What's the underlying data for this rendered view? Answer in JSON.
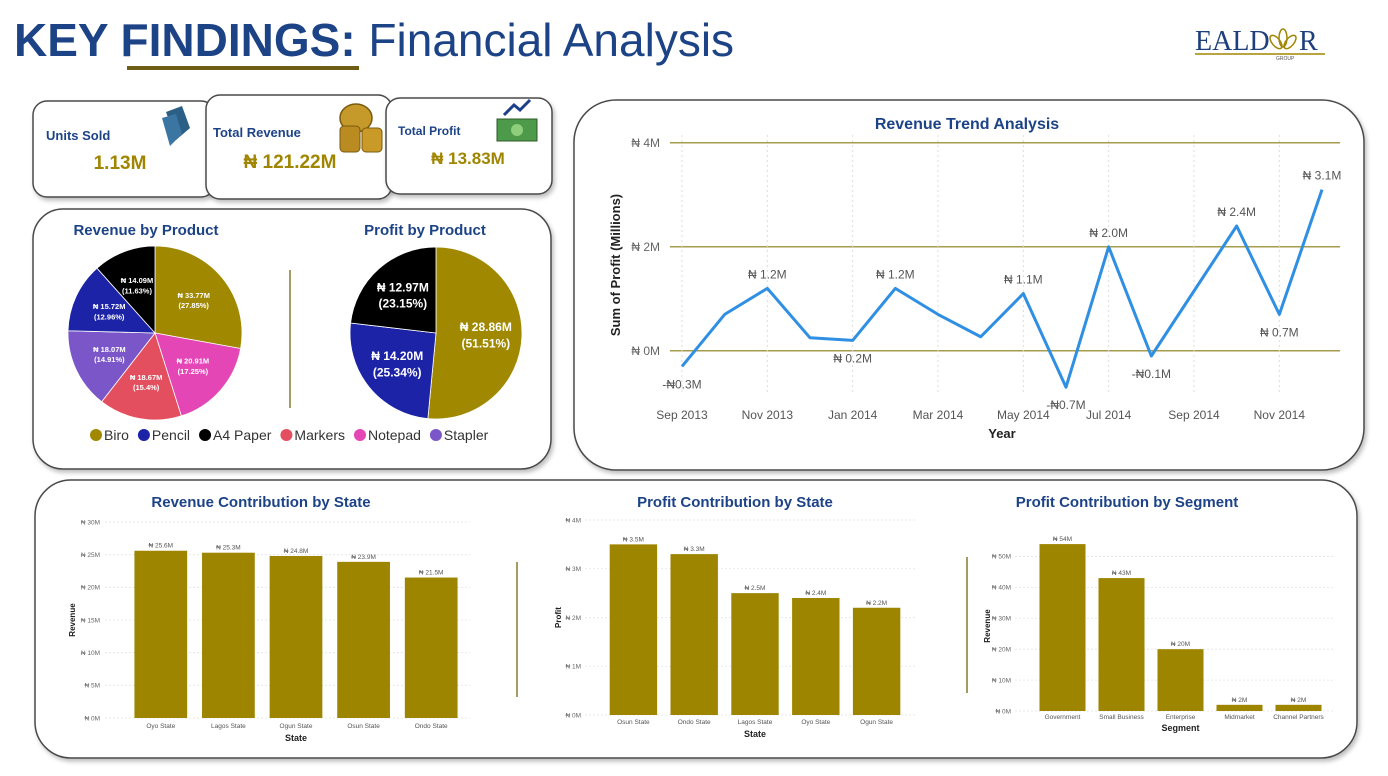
{
  "header": {
    "title_bold": "KEY FINDINGS:",
    "title_light": "Financial Analysis",
    "logo_left": "EALD",
    "logo_right": "R",
    "logo_sub": "GROUP"
  },
  "kpis": [
    {
      "label": "Units Sold",
      "value": "1.13M"
    },
    {
      "label": "Total Revenue",
      "value": "₦ 121.22M"
    },
    {
      "label": "Total Profit",
      "value": "₦ 13.83M"
    }
  ],
  "product_legend": [
    {
      "name": "Biro",
      "color": "#a08800"
    },
    {
      "name": "Pencil",
      "color": "#1c23a6"
    },
    {
      "name": "A4 Paper",
      "color": "#000000"
    },
    {
      "name": "Markers",
      "color": "#e34f5f"
    },
    {
      "name": "Notepad",
      "color": "#e446b6"
    },
    {
      "name": "Stapler",
      "color": "#7a56c9"
    }
  ],
  "chart_data": [
    {
      "type": "pie",
      "title": "Revenue by Product",
      "categories": [
        "Biro",
        "Notepad",
        "Markers",
        "Stapler",
        "Pencil",
        "A4 Paper"
      ],
      "values": [
        33.77,
        20.91,
        18.67,
        18.07,
        15.72,
        14.09
      ],
      "value_labels": [
        "₦ 33.77M",
        "₦ 20.91M",
        "₦ 18.67M",
        "₦ 18.07M",
        "₦ 15.72M",
        "₦ 14.09M"
      ],
      "percent_labels": [
        "(27.85%)",
        "(17.25%)",
        "(15.4%)",
        "(14.91%)",
        "(12.96%)",
        "(11.63%)"
      ]
    },
    {
      "type": "pie",
      "title": "Profit by Product",
      "categories": [
        "Biro",
        "Pencil",
        "A4 Paper"
      ],
      "values": [
        28.86,
        14.2,
        12.97
      ],
      "value_labels": [
        "₦ 28.86M",
        "₦ 14.20M",
        "₦ 12.97M"
      ],
      "percent_labels": [
        "(51.51%)",
        "(25.34%)",
        "(23.15%)"
      ]
    },
    {
      "type": "line",
      "title": "Revenue Trend Analysis",
      "y_label": "Sum of Profit (Millions)",
      "x_label": "Year",
      "categories": [
        "Sep 2013",
        null,
        "Nov 2013",
        null,
        "Jan 2014",
        null,
        "Mar 2014",
        null,
        "May 2014",
        null,
        "Jul 2014",
        null,
        "Sep 2014",
        null,
        "Nov 2014",
        null
      ],
      "values": [
        -0.3,
        0.7,
        1.2,
        0.25,
        0.2,
        1.2,
        0.7,
        0.27,
        1.1,
        -0.7,
        2.0,
        -0.1,
        1.15,
        2.4,
        0.7,
        3.1
      ],
      "value_labels": [
        "-₦0.3M",
        null,
        "₦ 1.2M",
        null,
        "₦ 0.2M",
        "₦ 1.2M",
        null,
        null,
        "₦ 1.1M",
        "-₦0.7M",
        "₦ 2.0M",
        "-₦0.1M",
        null,
        "₦ 2.4M",
        "₦ 0.7M",
        "₦ 3.1M"
      ],
      "color": "#2f8fe3",
      "ylim": [
        -0.85,
        4.15
      ],
      "yticks": [
        {
          "value": 0,
          "label": "₦ 0M"
        },
        {
          "value": 2,
          "label": "₦ 2M"
        },
        {
          "value": 4,
          "label": "₦ 4M"
        }
      ],
      "grid": true,
      "grid_color": "#8a7a10"
    },
    {
      "type": "bar",
      "title": "Revenue Contribution by State",
      "y_label": "Revenue",
      "x_label": "State",
      "categories": [
        "Oyo State",
        "Lagos State",
        "Ogun State",
        "Osun State",
        "Ondo State"
      ],
      "values": [
        25.6,
        25.3,
        24.8,
        23.9,
        21.5
      ],
      "value_labels": [
        "₦ 25.6M",
        "₦ 25.3M",
        "₦ 24.8M",
        "₦ 23.9M",
        "₦ 21.5M"
      ],
      "color": "#9e8500",
      "ylim": [
        0,
        30
      ],
      "yticks": [
        {
          "value": 0,
          "label": "₦ 0M"
        },
        {
          "value": 5,
          "label": "₦ 5M"
        },
        {
          "value": 10,
          "label": "₦ 10M"
        },
        {
          "value": 15,
          "label": "₦ 15M"
        },
        {
          "value": 20,
          "label": "₦ 20M"
        },
        {
          "value": 25,
          "label": "₦ 25M"
        },
        {
          "value": 30,
          "label": "₦ 30M"
        }
      ],
      "grid": true,
      "grid_color": "#e3e3e3"
    },
    {
      "type": "bar",
      "title": "Profit Contribution by State",
      "y_label": "Profit",
      "x_label": "State",
      "categories": [
        "Osun State",
        "Ondo State",
        "Lagos State",
        "Oyo State",
        "Ogun State"
      ],
      "values": [
        3.5,
        3.3,
        2.5,
        2.4,
        2.2
      ],
      "value_labels": [
        "₦ 3.5M",
        "₦ 3.3M",
        "₦ 2.5M",
        "₦ 2.4M",
        "₦ 2.2M"
      ],
      "color": "#9e8500",
      "ylim": [
        0,
        4
      ],
      "yticks": [
        {
          "value": 0,
          "label": "₦ 0M"
        },
        {
          "value": 1,
          "label": "₦ 1M"
        },
        {
          "value": 2,
          "label": "₦ 2M"
        },
        {
          "value": 3,
          "label": "₦ 3M"
        },
        {
          "value": 4,
          "label": "₦ 4M"
        }
      ],
      "grid": true,
      "grid_color": "#e3e3e3"
    },
    {
      "type": "bar",
      "title": "Profit Contribution by Segment",
      "y_label": "Revenue",
      "x_label": "Segment",
      "categories": [
        "Government",
        "Small Business",
        "Enterprise",
        "Midmarket",
        "Channel Partners"
      ],
      "values": [
        54,
        43,
        20,
        2,
        2
      ],
      "value_labels": [
        "₦ 54M",
        "₦ 43M",
        "₦ 20M",
        "₦ 2M",
        "₦ 2M"
      ],
      "color": "#9e8500",
      "ylim": [
        0,
        55
      ],
      "yticks": [
        {
          "value": 0,
          "label": "₦ 0M"
        },
        {
          "value": 10,
          "label": "₦ 10M"
        },
        {
          "value": 20,
          "label": "₦ 20M"
        },
        {
          "value": 30,
          "label": "₦ 30M"
        },
        {
          "value": 40,
          "label": "₦ 40M"
        },
        {
          "value": 50,
          "label": "₦ 50M"
        }
      ],
      "grid": true,
      "grid_color": "#e3e3e3"
    }
  ]
}
